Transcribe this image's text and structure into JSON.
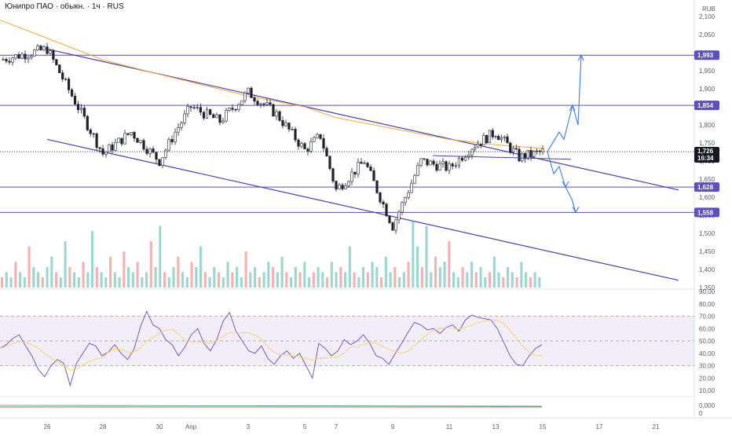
{
  "chart_data": {
    "type": "candlestick",
    "title": "Юнипро ПАО · обыкн. · 1ч · RUS",
    "currency": "RUB",
    "x_ticks": [
      "26",
      "28",
      "30",
      "Апр",
      "3",
      "5",
      "7",
      "9",
      "11",
      "13",
      "15",
      "17",
      "21"
    ],
    "price_axis": {
      "ticks": [
        "2,100",
        "2,050",
        "2,000",
        "1,950",
        "1,900",
        "1,850",
        "1,800",
        "1,750",
        "1,700",
        "1,650",
        "1,600",
        "1,550",
        "1,500",
        "1,450",
        "1,400",
        "1,350"
      ],
      "ylim": [
        1.35,
        2.1
      ]
    },
    "current_price": {
      "value": 1.726,
      "label": "1,726",
      "countdown": "16:34"
    },
    "levels": [
      {
        "value": 1.993,
        "label": "1,993"
      },
      {
        "value": 1.854,
        "label": "1,854"
      },
      {
        "value": 1.628,
        "label": "1,628"
      },
      {
        "value": 1.558,
        "label": "1,558"
      }
    ],
    "key_prices": [
      {
        "x": "25",
        "value": 1.98
      },
      {
        "x": "26",
        "value": 2.01
      },
      {
        "x": "28",
        "value": 1.72
      },
      {
        "x": "29",
        "value": 1.78
      },
      {
        "x": "30",
        "value": 1.7
      },
      {
        "x": "31",
        "value": 1.78
      },
      {
        "x": "1",
        "value": 1.85
      },
      {
        "x": "2",
        "value": 1.81
      },
      {
        "x": "3",
        "value": 1.89
      },
      {
        "x": "4",
        "value": 1.83
      },
      {
        "x": "5",
        "value": 1.73
      },
      {
        "x": "6",
        "value": 1.77
      },
      {
        "x": "7",
        "value": 1.62
      },
      {
        "x": "8",
        "value": 1.7
      },
      {
        "x": "9",
        "value": 1.52
      },
      {
        "x": "10",
        "value": 1.7
      },
      {
        "x": "11",
        "value": 1.68
      },
      {
        "x": "12",
        "value": 1.74
      },
      {
        "x": "13",
        "value": 1.78
      },
      {
        "x": "14",
        "value": 1.71
      },
      {
        "x": "15",
        "value": 1.726
      }
    ],
    "ma_line": [
      {
        "x": "25",
        "value": 2.09
      },
      {
        "x": "26",
        "value": 2.04
      },
      {
        "x": "28",
        "value": 1.98
      },
      {
        "x": "30",
        "value": 1.94
      },
      {
        "x": "3",
        "value": 1.88
      },
      {
        "x": "5",
        "value": 1.85
      },
      {
        "x": "7",
        "value": 1.82
      },
      {
        "x": "9",
        "value": 1.79
      },
      {
        "x": "11",
        "value": 1.76
      },
      {
        "x": "13",
        "value": 1.745
      },
      {
        "x": "15",
        "value": 1.735
      }
    ],
    "channel": {
      "upper": [
        {
          "x": "26",
          "value": 2.01
        },
        {
          "x": "21",
          "value": 1.62
        }
      ],
      "lower": [
        {
          "x": "25.5",
          "value": 1.76
        },
        {
          "x": "21",
          "value": 1.37
        }
      ]
    },
    "projection": {
      "up_targets": [
        1.854,
        1.993
      ],
      "down_targets": [
        1.628,
        1.558
      ]
    },
    "volume": {
      "values": [
        2,
        3,
        2,
        5,
        3,
        2,
        8,
        4,
        3,
        2,
        4,
        6,
        3,
        2,
        9,
        4,
        3,
        2,
        5,
        3,
        11,
        4,
        3,
        2,
        6,
        3,
        2,
        7,
        4,
        3,
        5,
        2,
        3,
        9,
        4,
        12,
        3,
        2,
        4,
        6,
        3,
        2,
        5,
        4,
        8,
        3,
        2,
        4,
        3,
        2,
        5,
        3,
        4,
        2,
        7,
        3,
        4,
        2,
        3,
        5,
        4,
        3,
        6,
        3,
        2,
        4,
        3,
        5,
        2,
        3,
        4,
        3,
        2,
        5,
        3,
        4,
        3,
        8,
        3,
        2,
        4,
        3,
        5,
        4,
        2,
        6,
        3,
        4,
        2,
        3,
        5,
        13,
        8,
        4,
        12,
        3,
        6,
        4,
        5,
        9,
        3,
        2,
        4,
        3,
        5,
        3,
        4,
        2,
        3,
        6,
        3,
        2,
        4,
        3,
        2,
        5,
        3,
        2,
        3,
        2
      ]
    },
    "rsi": {
      "ticks": [
        "90,00",
        "80,00",
        "70,00",
        "60,00",
        "50,00",
        "40,00",
        "30,00",
        "20,00",
        "10,00"
      ],
      "ylim": [
        10,
        90
      ],
      "bands": [
        30,
        50,
        70
      ],
      "values": [
        44,
        47,
        52,
        55,
        46,
        38,
        27,
        21,
        30,
        35,
        32,
        14,
        32,
        40,
        48,
        46,
        38,
        41,
        47,
        40,
        35,
        43,
        61,
        74,
        63,
        60,
        51,
        47,
        38,
        45,
        55,
        60,
        48,
        42,
        51,
        66,
        73,
        58,
        50,
        42,
        40,
        46,
        36,
        31,
        38,
        42,
        36,
        40,
        30,
        20,
        48,
        44,
        38,
        42,
        51,
        47,
        50,
        55,
        48,
        38,
        36,
        31,
        40,
        48,
        57,
        65,
        63,
        59,
        60,
        56,
        61,
        63,
        58,
        67,
        71,
        69,
        68,
        67,
        60,
        49,
        38,
        31,
        30,
        38,
        44,
        47
      ]
    },
    "lower_pane": {
      "ticks": [
        "0,000",
        "0"
      ]
    }
  }
}
